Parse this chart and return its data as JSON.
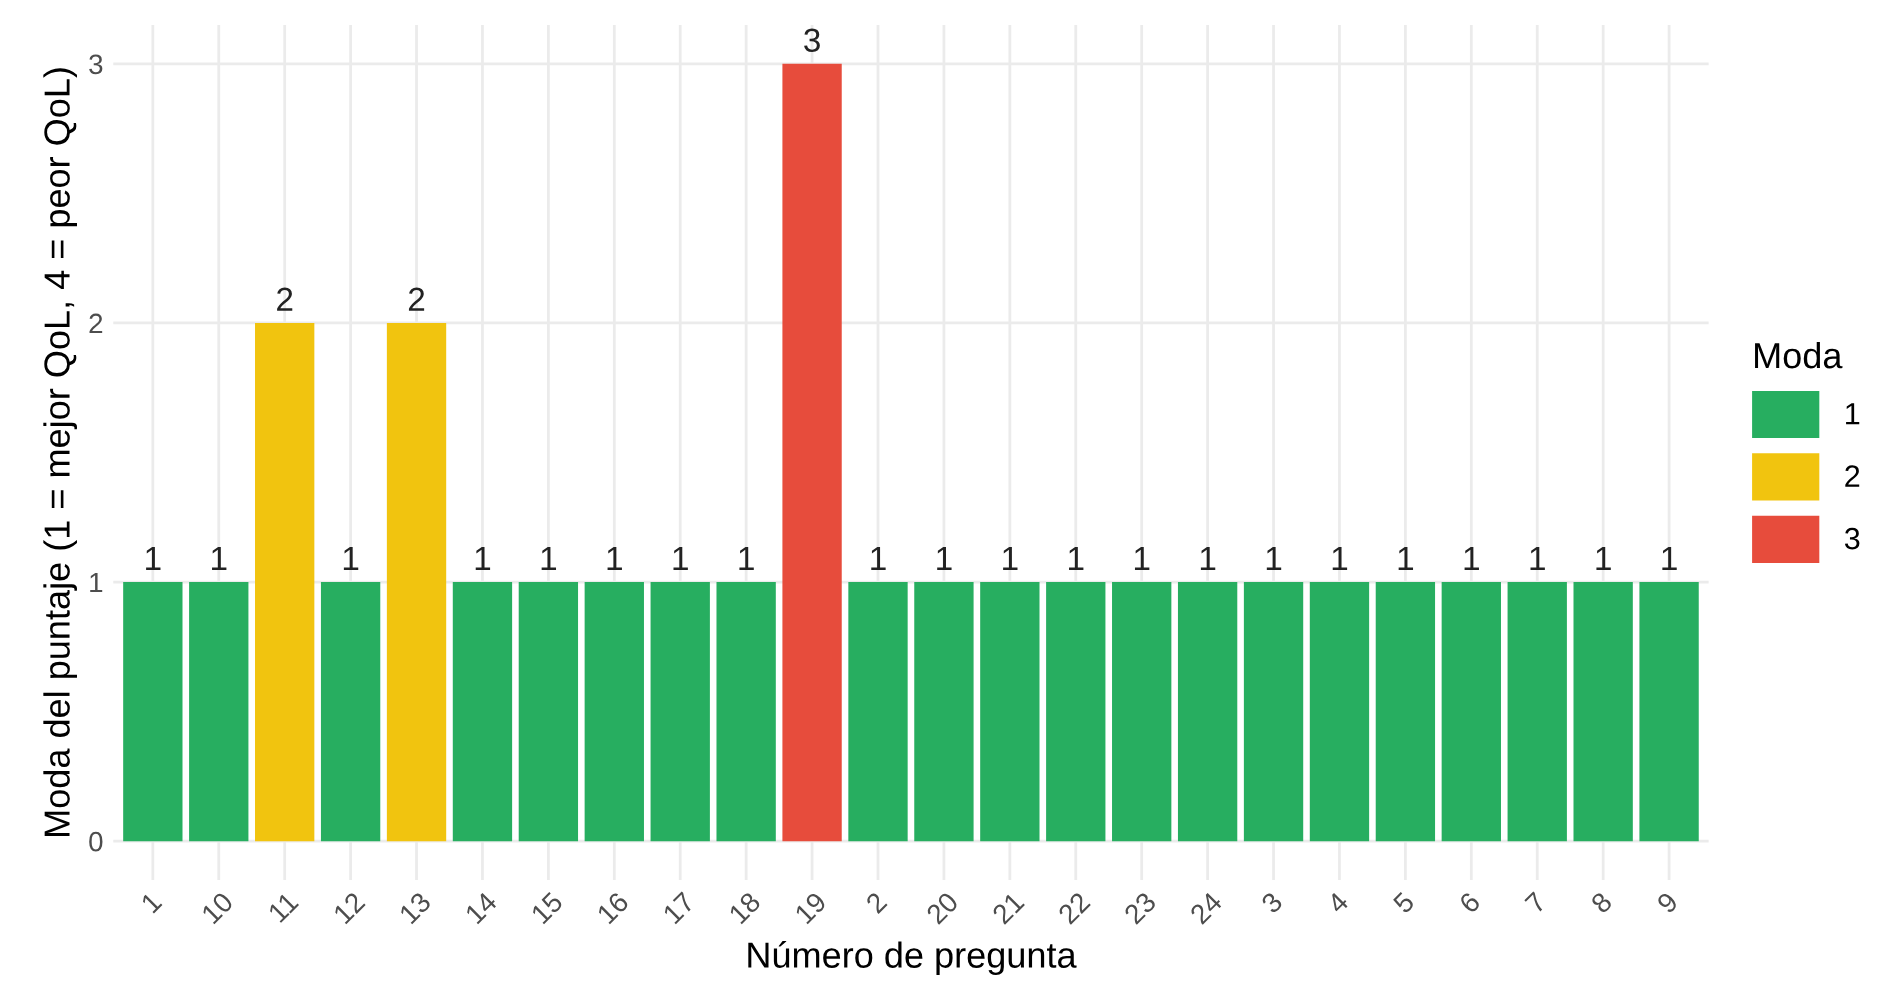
{
  "chart_data": {
    "type": "bar",
    "xlabel": "Número de pregunta",
    "ylabel": "Moda del puntaje (1 = mejor QoL, 4 = peor QoL)",
    "legend_title": "Moda",
    "categories": [
      "1",
      "10",
      "11",
      "12",
      "13",
      "14",
      "15",
      "16",
      "17",
      "18",
      "19",
      "2",
      "20",
      "21",
      "22",
      "23",
      "24",
      "3",
      "4",
      "5",
      "6",
      "7",
      "8",
      "9"
    ],
    "series": [
      {
        "name": "1",
        "color": "#27ae60",
        "values": [
          1,
          1,
          null,
          1,
          null,
          1,
          1,
          1,
          1,
          1,
          null,
          1,
          1,
          1,
          1,
          1,
          1,
          1,
          1,
          1,
          1,
          1,
          1,
          1
        ]
      },
      {
        "name": "2",
        "color": "#f1c40f",
        "values": [
          null,
          null,
          2,
          null,
          2,
          null,
          null,
          null,
          null,
          null,
          null,
          null,
          null,
          null,
          null,
          null,
          null,
          null,
          null,
          null,
          null,
          null,
          null,
          null
        ]
      },
      {
        "name": "3",
        "color": "#e74c3c",
        "values": [
          null,
          null,
          null,
          null,
          null,
          null,
          null,
          null,
          null,
          null,
          3,
          null,
          null,
          null,
          null,
          null,
          null,
          null,
          null,
          null,
          null,
          null,
          null,
          null
        ]
      }
    ],
    "data_labels": true,
    "ylim": [
      -0.15,
      3.15
    ],
    "yticks": [
      0,
      1,
      2,
      3
    ],
    "grid": true,
    "legend": "right"
  }
}
